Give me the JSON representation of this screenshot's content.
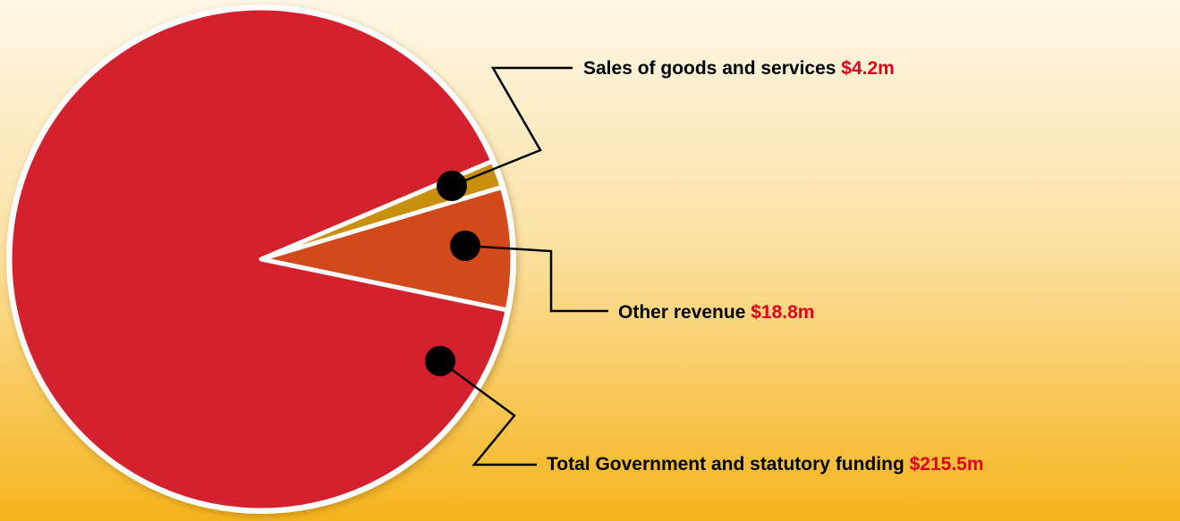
{
  "chart_data": {
    "type": "pie",
    "categories": [
      "Sales of goods and services",
      "Other revenue",
      "Total Government and statutory funding"
    ],
    "values": [
      4.2,
      18.8,
      215.5
    ],
    "value_labels": [
      "$4.2m",
      "$18.8m",
      "$215.5m"
    ],
    "colors": [
      "#c8900e",
      "#d2491f",
      "#d3202f"
    ]
  }
}
